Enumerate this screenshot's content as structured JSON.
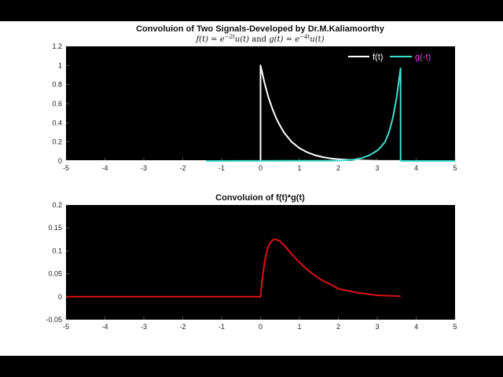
{
  "colors": {
    "frame": "#000000",
    "figure_bg": "#ffffff",
    "axes_bg": "#000000",
    "f_line": "#ffffff",
    "g_line": "#40e0d0",
    "g_label": "#e040e0",
    "conv_line": "#dd1111"
  },
  "chart_data": [
    {
      "type": "line",
      "title": "Convoluion of Two Signals-Developed by Dr.M.Kaliamoorthy",
      "subtitle": "f(t) = e^{-2t}u(t) and g(t) = e^{-4t}u(t)",
      "subtitle_parts": {
        "f": "f(t) = e",
        "f_exp": "−2t",
        "f_tail": "u(t)",
        "and": " and ",
        "g": "g(t) = e",
        "g_exp": "−4t",
        "g_tail": "u(t)"
      },
      "xlim": [
        -5,
        5
      ],
      "ylim": [
        0,
        1.2
      ],
      "xticks": [
        -5,
        -4,
        -3,
        -2,
        -1,
        0,
        1,
        2,
        3,
        4,
        5
      ],
      "yticks": [
        0,
        0.2,
        0.4,
        0.6,
        0.8,
        1,
        1.2
      ],
      "ytick_labels": [
        "0",
        "0.2",
        "0.4",
        "0.6",
        "0.8",
        "1",
        "1.2"
      ],
      "legend_position": "top-right",
      "series": [
        {
          "name": "f(t)",
          "x": [
            -5,
            0,
            0,
            0.1,
            0.2,
            0.3,
            0.4,
            0.5,
            0.6,
            0.8,
            1.0,
            1.2,
            1.4,
            1.6,
            1.8,
            2.0,
            2.5,
            3.0,
            3.5,
            4.0,
            4.5,
            5
          ],
          "y": [
            0,
            0,
            1,
            0.82,
            0.67,
            0.55,
            0.45,
            0.37,
            0.3,
            0.2,
            0.135,
            0.091,
            0.061,
            0.041,
            0.027,
            0.018,
            0.007,
            0.002,
            0.001,
            0,
            0,
            0
          ]
        },
        {
          "name": "g(-t)",
          "x": [
            -1.4,
            2.0,
            2.4,
            2.6,
            2.8,
            3.0,
            3.1,
            3.2,
            3.3,
            3.4,
            3.5,
            3.55,
            3.6,
            3.6,
            5
          ],
          "y": [
            0,
            0.003,
            0.015,
            0.03,
            0.06,
            0.11,
            0.15,
            0.2,
            0.3,
            0.45,
            0.67,
            0.82,
            0.97,
            0,
            0
          ]
        }
      ]
    },
    {
      "type": "line",
      "title": "Convoluion of f(t)*g(t)",
      "xlim": [
        -5,
        5
      ],
      "ylim": [
        -0.05,
        0.2
      ],
      "xticks": [
        -5,
        -4,
        -3,
        -2,
        -1,
        0,
        1,
        2,
        3,
        4,
        5
      ],
      "yticks": [
        -0.05,
        0,
        0.05,
        0.1,
        0.15,
        0.2
      ],
      "ytick_labels": [
        "-0.05",
        "0",
        "0.05",
        "0.1",
        "0.15",
        "0.2"
      ],
      "series": [
        {
          "x": [
            -5,
            0,
            0.05,
            0.1,
            0.15,
            0.2,
            0.25,
            0.3,
            0.35,
            0.4,
            0.5,
            0.6,
            0.7,
            0.8,
            1.0,
            1.2,
            1.4,
            1.6,
            1.8,
            2.0,
            2.5,
            3.0,
            3.6
          ],
          "y": [
            0,
            0,
            0.043,
            0.074,
            0.095,
            0.109,
            0.118,
            0.123,
            0.125,
            0.125,
            0.121,
            0.113,
            0.103,
            0.093,
            0.075,
            0.059,
            0.046,
            0.035,
            0.027,
            0.0175,
            0.0086,
            0.003,
            0.001
          ]
        }
      ]
    }
  ]
}
